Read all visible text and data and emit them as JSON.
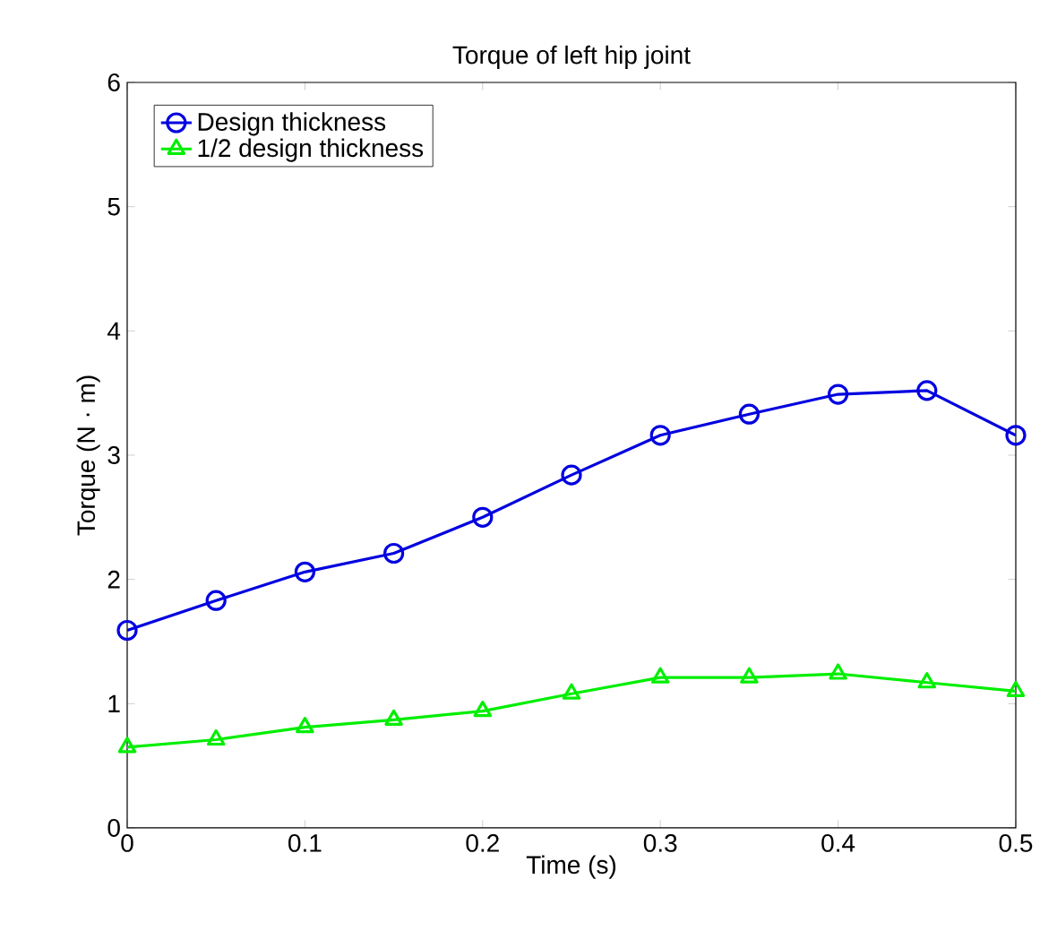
{
  "chart_data": {
    "type": "line",
    "title": "Torque of left hip joint",
    "xlabel": "Time (s)",
    "ylabel": "Torque (N · m)",
    "x": [
      0,
      0.05,
      0.1,
      0.15,
      0.2,
      0.25,
      0.3,
      0.35,
      0.4,
      0.45,
      0.5
    ],
    "series": [
      {
        "name": "Design thickness",
        "color": "#0000e0",
        "marker": "circle",
        "values": [
          1.59,
          1.83,
          2.06,
          2.21,
          2.5,
          2.84,
          3.16,
          3.33,
          3.49,
          3.52,
          3.16
        ]
      },
      {
        "name": "1/2 design thickness",
        "color": "#00ee00",
        "marker": "triangle",
        "values": [
          0.65,
          0.71,
          0.81,
          0.87,
          0.94,
          1.08,
          1.21,
          1.21,
          1.24,
          1.17,
          1.1
        ]
      }
    ],
    "xlim": [
      0,
      0.5
    ],
    "xticks": [
      0,
      0.1,
      0.2,
      0.3,
      0.4,
      0.5
    ],
    "ylim": [
      0,
      6
    ],
    "yticks": [
      0,
      1,
      2,
      3,
      4,
      5,
      6
    ],
    "legend": "top left",
    "grid": false,
    "line_style": "solid"
  }
}
